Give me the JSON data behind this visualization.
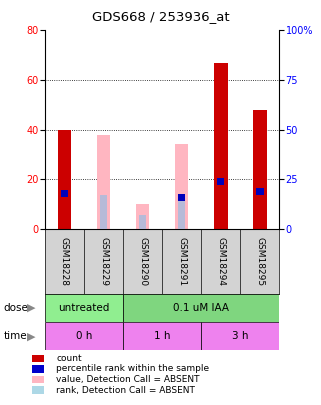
{
  "title": "GDS668 / 253936_at",
  "samples": [
    "GSM18228",
    "GSM18229",
    "GSM18290",
    "GSM18291",
    "GSM18294",
    "GSM18295"
  ],
  "red_bars": [
    40,
    0,
    0,
    0,
    67,
    48
  ],
  "blue_markers": [
    18,
    0,
    0,
    16,
    24,
    19
  ],
  "pink_bars": [
    0,
    38,
    10,
    34,
    0,
    0
  ],
  "lightblue_bars": [
    0,
    17,
    7,
    16,
    0,
    0
  ],
  "ylim_left": [
    0,
    80
  ],
  "ylim_right": [
    0,
    100
  ],
  "yticks_left": [
    0,
    20,
    40,
    60,
    80
  ],
  "yticks_right": [
    0,
    25,
    50,
    75,
    100
  ],
  "ytick_labels_right": [
    "0",
    "25",
    "50",
    "75",
    "100%"
  ],
  "dose_labels": [
    {
      "text": "untreated",
      "start": 0,
      "end": 2,
      "color": "#90EE90"
    },
    {
      "text": "0.1 uM IAA",
      "start": 2,
      "end": 6,
      "color": "#7FD67F"
    }
  ],
  "time_labels": [
    {
      "text": "0 h",
      "start": 0,
      "end": 2,
      "color": "#EE82EE"
    },
    {
      "text": "1 h",
      "start": 2,
      "end": 4,
      "color": "#EE82EE"
    },
    {
      "text": "3 h",
      "start": 4,
      "end": 6,
      "color": "#EE82EE"
    }
  ],
  "legend_items": [
    {
      "color": "#CC0000",
      "label": "count"
    },
    {
      "color": "#0000CC",
      "label": "percentile rank within the sample"
    },
    {
      "color": "#FFB6C1",
      "label": "value, Detection Call = ABSENT"
    },
    {
      "color": "#ADD8E6",
      "label": "rank, Detection Call = ABSENT"
    }
  ],
  "bar_width": 0.35,
  "title_fontsize": 9.5,
  "tick_fontsize": 7,
  "label_fontsize": 7.5,
  "sample_fontsize": 6.5
}
